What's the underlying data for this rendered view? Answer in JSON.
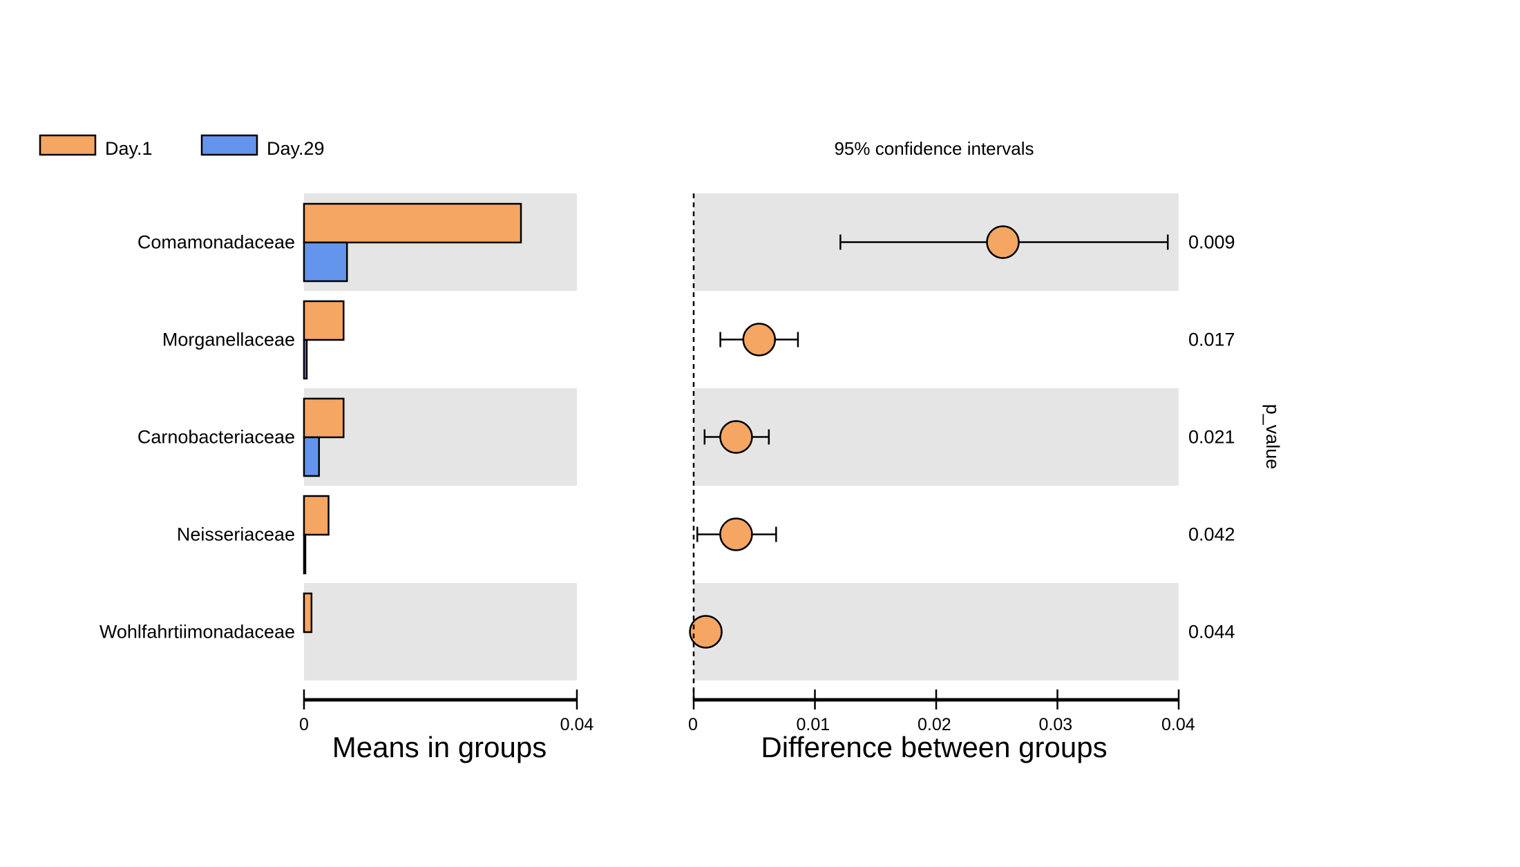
{
  "chart_data": {
    "type": "bar",
    "categories": [
      "Comamonadaceae",
      "Morganellaceae",
      "Carnobacteriaceae",
      "Neisseriaceae",
      "Wohlfahrtiimonadaceae"
    ],
    "legend": {
      "placement": "top-left",
      "items": [
        {
          "label": "Day.1",
          "color": "#F5A662"
        },
        {
          "label": "Day.29",
          "color": "#6495ED"
        }
      ]
    },
    "means_panel": {
      "xlabel": "Means in groups",
      "xlim": [
        0,
        0.04
      ],
      "ticks": [
        {
          "value": 0,
          "label": "0"
        },
        {
          "value": 0.04,
          "label": "0.04"
        }
      ],
      "series": [
        {
          "name": "Day.1",
          "color": "#F5A662",
          "values": [
            0.0318,
            0.0058,
            0.0058,
            0.0036,
            0.0011
          ]
        },
        {
          "name": "Day.29",
          "color": "#6495ED",
          "values": [
            0.0063,
            0.0004,
            0.0022,
            0.0002,
            0.0
          ]
        }
      ]
    },
    "difference_panel": {
      "title": "95% confidence intervals",
      "xlabel": "Difference between groups",
      "xlim": [
        0,
        0.04
      ],
      "ticks": [
        {
          "value": 0,
          "label": "0"
        },
        {
          "value": 0.01,
          "label": "0.01"
        },
        {
          "value": 0.02,
          "label": "0.02"
        },
        {
          "value": 0.03,
          "label": "0.03"
        },
        {
          "value": 0.04,
          "label": "0.04"
        }
      ],
      "point_color": "#F5A662",
      "estimates": [
        0.0255,
        0.0054,
        0.0035,
        0.0035,
        0.001
      ],
      "ci_low": [
        0.0121,
        0.0022,
        0.0009,
        0.0003,
        0.0
      ],
      "ci_high": [
        0.0391,
        0.0086,
        0.0062,
        0.0068,
        0.0021
      ]
    },
    "p_value": {
      "label": "p_value",
      "values": [
        "0.009",
        "0.017",
        "0.021",
        "0.042",
        "0.044"
      ]
    },
    "grid": false,
    "row_shading": "alternating"
  }
}
